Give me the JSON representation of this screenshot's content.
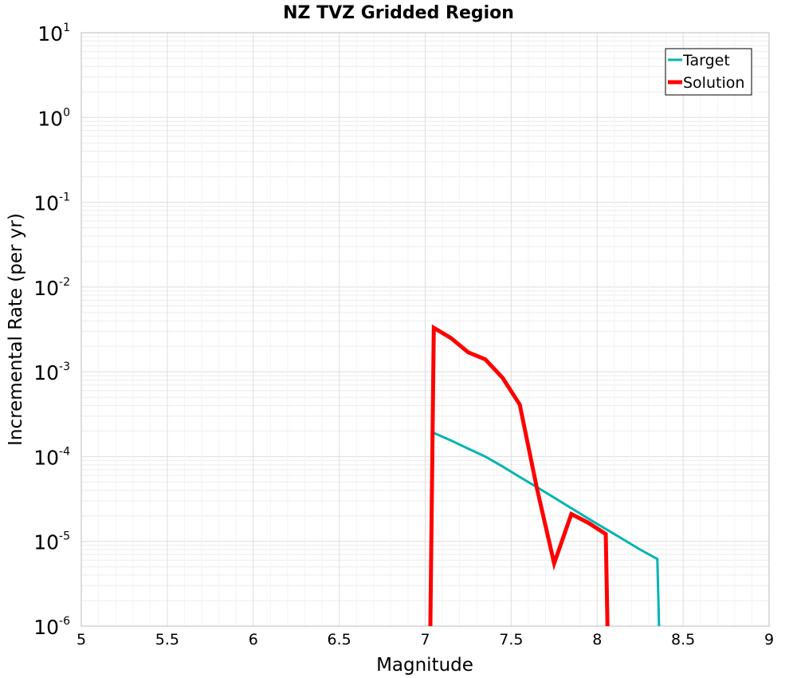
{
  "chart_data": {
    "type": "line",
    "title": "NZ TVZ Gridded Region",
    "xlabel": "Magnitude",
    "ylabel": "Incremental Rate (per yr)",
    "xlim": [
      5,
      9
    ],
    "ylim": [
      1e-06,
      10
    ],
    "yscale": "log",
    "grid": true,
    "legend_position": "top-right",
    "x_ticks": [
      "5",
      "5.5",
      "6",
      "6.5",
      "7",
      "7.5",
      "8",
      "8.5",
      "9"
    ],
    "y_ticks": [
      {
        "base": "10",
        "exp": "1"
      },
      {
        "base": "10",
        "exp": "0"
      },
      {
        "base": "10",
        "exp": "-1"
      },
      {
        "base": "10",
        "exp": "-2"
      },
      {
        "base": "10",
        "exp": "-3"
      },
      {
        "base": "10",
        "exp": "-4"
      },
      {
        "base": "10",
        "exp": "-5"
      },
      {
        "base": "10",
        "exp": "-6"
      }
    ],
    "series": [
      {
        "name": "Target",
        "color": "#00b4b4",
        "points": [
          [
            7.05,
            0.00019
          ],
          [
            7.15,
            0.000155
          ],
          [
            7.25,
            0.000124
          ],
          [
            7.35,
            0.0001
          ],
          [
            7.45,
            7.65e-05
          ],
          [
            7.55,
            5.75e-05
          ],
          [
            7.65,
            4.35e-05
          ],
          [
            7.75,
            3.28e-05
          ],
          [
            7.85,
            2.46e-05
          ],
          [
            7.95,
            1.85e-05
          ],
          [
            8.05,
            1.4e-05
          ],
          [
            8.15,
            1.06e-05
          ],
          [
            8.25,
            8e-06
          ],
          [
            8.35,
            6.2e-06
          ],
          [
            8.36,
            1e-06
          ]
        ]
      },
      {
        "name": "Solution",
        "color": "#ff0000",
        "points": [
          [
            7.03,
            1e-06
          ],
          [
            7.05,
            0.0033
          ],
          [
            7.15,
            0.0025
          ],
          [
            7.25,
            0.0017
          ],
          [
            7.35,
            0.0014
          ],
          [
            7.45,
            0.00085
          ],
          [
            7.55,
            0.00041
          ],
          [
            7.65,
            4.2e-05
          ],
          [
            7.75,
            5.5e-06
          ],
          [
            7.85,
            2.1e-05
          ],
          [
            7.95,
            1.65e-05
          ],
          [
            8.05,
            1.22e-05
          ],
          [
            8.06,
            1e-06
          ]
        ]
      }
    ]
  }
}
